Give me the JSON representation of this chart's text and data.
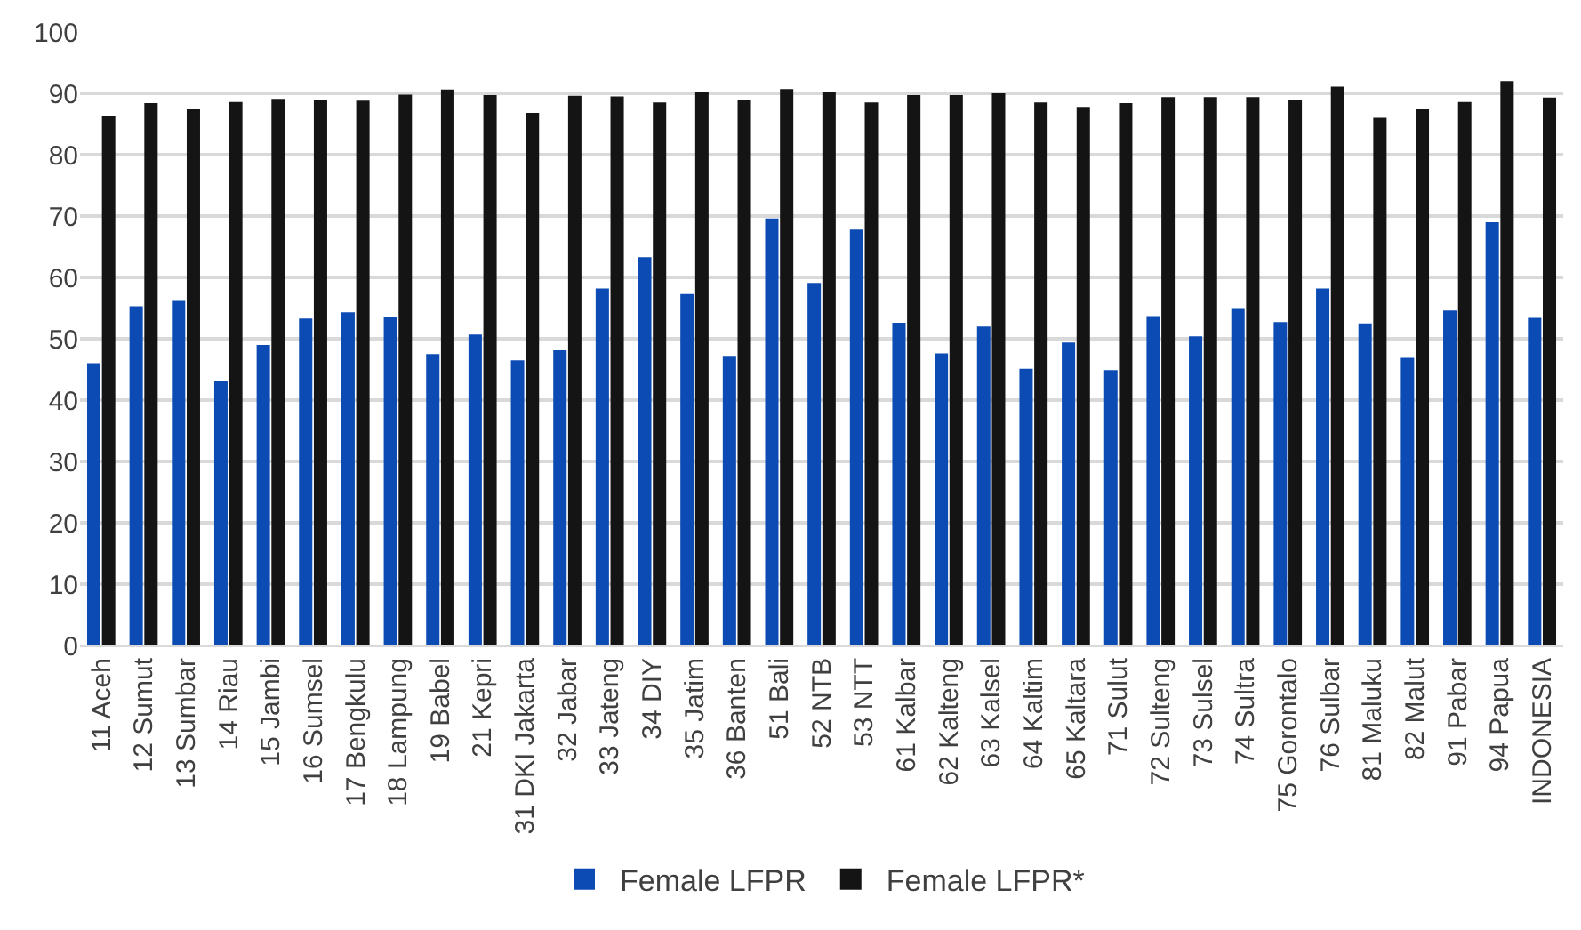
{
  "chart_data": {
    "type": "bar",
    "categories": [
      "11 Aceh",
      "12 Sumut",
      "13 Sumbar",
      "14 Riau",
      "15 Jambi",
      "16 Sumsel",
      "17 Bengkulu",
      "18 Lampung",
      "19 Babel",
      "21 Kepri",
      "31 DKI Jakarta",
      "32 Jabar",
      "33 Jateng",
      "34 DIY",
      "35 Jatim",
      "36 Banten",
      "51 Bali",
      "52 NTB",
      "53 NTT",
      "61 Kalbar",
      "62 Kalteng",
      "63 Kalsel",
      "64 Kaltim",
      "65 Kaltara",
      "71 Sulut",
      "72 Sulteng",
      "73 Sulsel",
      "74 Sultra",
      "75 Gorontalo",
      "76 Sulbar",
      "81 Maluku",
      "82 Malut",
      "91 Pabar",
      "94 Papua",
      "INDONESIA"
    ],
    "series": [
      {
        "name": "Female LFPR",
        "color": "#0b4bb3",
        "values": [
          46,
          55.3,
          56.3,
          43.2,
          49,
          53.3,
          54.3,
          53.5,
          47.5,
          50.7,
          46.5,
          48.1,
          58.2,
          63.3,
          57.3,
          47.2,
          69.6,
          59.1,
          67.8,
          52.6,
          47.6,
          52,
          45.1,
          49.4,
          44.9,
          53.7,
          50.4,
          55,
          52.7,
          58.2,
          52.5,
          46.9,
          54.6,
          69,
          53.4
        ]
      },
      {
        "name": "Female LFPR*",
        "color": "#141414",
        "values": [
          86.3,
          88.4,
          87.4,
          88.6,
          89.1,
          89,
          88.8,
          89.8,
          90.6,
          89.7,
          86.8,
          89.6,
          89.5,
          88.5,
          90.2,
          89,
          90.7,
          90.2,
          88.5,
          89.7,
          89.7,
          90,
          88.5,
          87.8,
          88.4,
          89.4,
          89.4,
          89.4,
          89,
          91.1,
          86,
          87.4,
          88.6,
          92,
          89.3
        ]
      }
    ],
    "ylim": [
      0,
      100
    ],
    "yticks": [
      0,
      10,
      20,
      30,
      40,
      50,
      60,
      70,
      80,
      90,
      100
    ],
    "grid": "y",
    "legend": "bottom"
  }
}
